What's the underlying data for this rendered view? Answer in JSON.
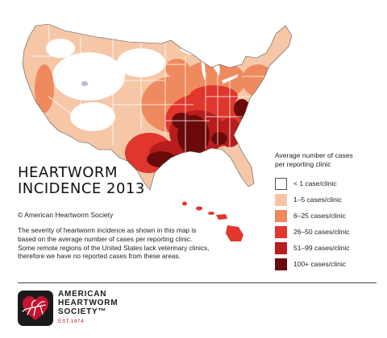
{
  "map": {
    "colors": {
      "water": "#ffffff",
      "land_base": "#f6c7a6",
      "border": "#ffffff",
      "lake": "#b4b8e0",
      "outline": "#555555"
    }
  },
  "title": {
    "line1": "HEARTWORM",
    "line2": "INCIDENCE 2013"
  },
  "copyright": {
    "symbol": "©",
    "text": "American Heartworm Society"
  },
  "description": "The severity of heartworm incidence as shown in this map is based on the average number of cases per reporting clinic. Some remote regions of the United States lack veterinary clinics, therefore we have no reported cases from these areas.",
  "legend": {
    "title_line1": "Average number of cases",
    "title_line2": "per reporting clinic",
    "items": [
      {
        "label": "< 1 case/clinic",
        "color": "#ffffff"
      },
      {
        "label": "1–5 cases/clinic",
        "color": "#f6c7a6"
      },
      {
        "label": "6–25 cases/clinic",
        "color": "#ef8a5e"
      },
      {
        "label": "26–50 cases/clinic",
        "color": "#e0362c"
      },
      {
        "label": "51–99 cases/clinic",
        "color": "#b81c1c"
      },
      {
        "label": "100+ cases/clinic",
        "color": "#6b0a0a"
      }
    ]
  },
  "logo": {
    "line1": "AMERICAN",
    "line2": "HEARTWORM",
    "line3": "SOCIETY™",
    "est": "EST.1974",
    "colors": {
      "badge": "#1a1a1a",
      "heart": "#c4122f"
    }
  }
}
